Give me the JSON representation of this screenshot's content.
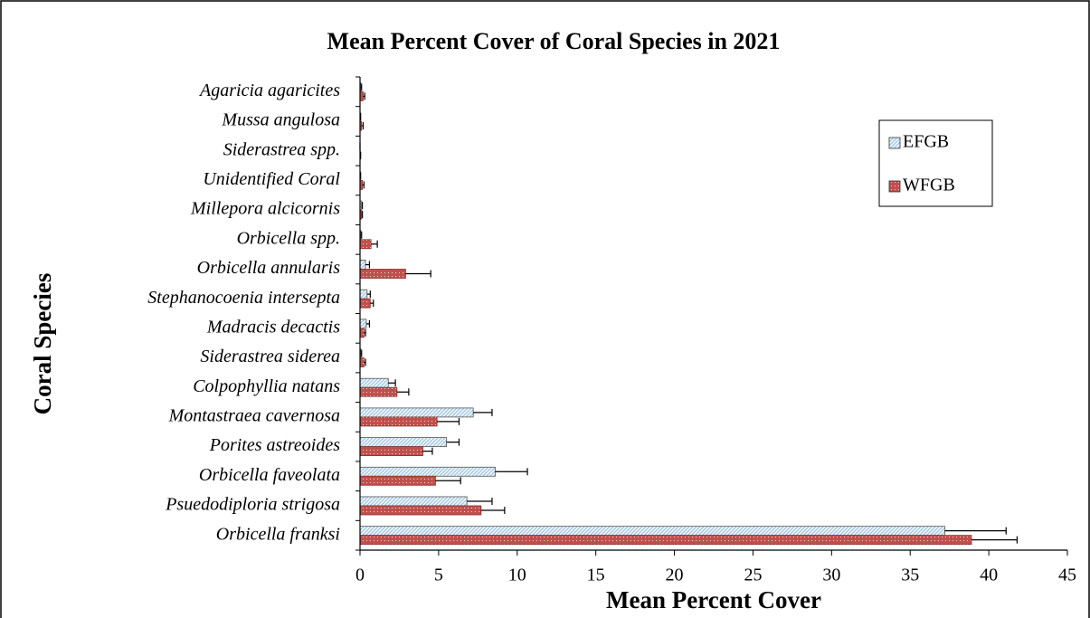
{
  "chart_data": {
    "type": "bar",
    "orientation": "horizontal",
    "title": "Mean Percent Cover of Coral Species in 2021",
    "x_label": "Mean Percent Cover",
    "y_label": "Coral Species",
    "categories": [
      "Agaricia agaricites",
      "Mussa angulosa",
      "Siderastrea spp.",
      "Unidentified Coral",
      "Millepora alcicornis",
      "Orbicella spp.",
      "Orbicella annularis",
      "Stephanocoenia intersepta",
      "Madracis decactis",
      "Siderastrea siderea",
      "Colpophyllia natans",
      "Montastraea cavernosa",
      "Porites astreoides",
      "Orbicella faveolata",
      "Psuedodiploria strigosa",
      "Orbicella franksi"
    ],
    "series": [
      {
        "name": "EFGB",
        "color": "#9dc3e6",
        "values": [
          0.05,
          0.02,
          0,
          0.02,
          0.1,
          0.05,
          0.35,
          0.45,
          0.4,
          0.05,
          1.8,
          7.2,
          5.5,
          8.6,
          6.8,
          37.2
        ],
        "errors": [
          0.05,
          0.02,
          0,
          0.02,
          0.05,
          0.05,
          0.25,
          0.2,
          0.2,
          0.05,
          0.45,
          1.2,
          0.8,
          2.05,
          1.6,
          3.9
        ]
      },
      {
        "name": "WFGB",
        "color": "#c0504d",
        "values": [
          0.2,
          0.1,
          0.02,
          0.15,
          0.1,
          0.7,
          2.9,
          0.65,
          0.25,
          0.25,
          2.35,
          4.9,
          4.0,
          4.8,
          7.7,
          38.9
        ],
        "errors": [
          0.1,
          0.1,
          0.02,
          0.1,
          0.05,
          0.4,
          1.6,
          0.2,
          0.1,
          0.1,
          0.75,
          1.4,
          0.6,
          1.6,
          1.5,
          2.9
        ]
      }
    ],
    "xlim": [
      0,
      45
    ],
    "xticks": [
      0,
      5,
      10,
      15,
      20,
      25,
      30,
      35,
      40,
      45
    ],
    "legend": "upper right",
    "grid": false
  }
}
